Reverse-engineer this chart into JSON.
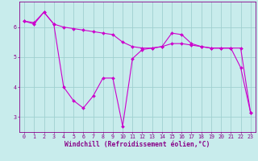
{
  "xlabel": "Windchill (Refroidissement éolien,°C)",
  "background_color": "#c8ecec",
  "grid_color": "#a0d0d0",
  "line_color": "#cc00cc",
  "xlim": [
    -0.5,
    23.5
  ],
  "ylim": [
    2.5,
    6.85
  ],
  "yticks": [
    3,
    4,
    5,
    6
  ],
  "xticks": [
    0,
    1,
    2,
    3,
    4,
    5,
    6,
    7,
    8,
    9,
    10,
    11,
    12,
    13,
    14,
    15,
    16,
    17,
    18,
    19,
    20,
    21,
    22,
    23
  ],
  "series1_x": [
    0,
    1,
    2,
    3,
    4,
    5,
    6,
    7,
    8,
    9,
    10,
    11,
    12,
    13,
    14,
    15,
    16,
    17,
    18,
    19,
    20,
    21,
    22,
    23
  ],
  "series1_y": [
    6.2,
    6.15,
    6.5,
    6.1,
    6.0,
    5.95,
    5.9,
    5.85,
    5.8,
    5.75,
    5.5,
    5.35,
    5.3,
    5.3,
    5.35,
    5.45,
    5.45,
    5.4,
    5.35,
    5.3,
    5.3,
    5.3,
    5.3,
    3.15
  ],
  "series2_x": [
    0,
    1,
    2,
    3,
    4,
    5,
    6,
    7,
    8,
    9,
    10,
    11,
    12,
    13,
    14,
    15,
    16,
    17,
    18,
    19,
    20,
    21,
    22,
    23
  ],
  "series2_y": [
    6.2,
    6.1,
    6.5,
    6.1,
    4.0,
    3.55,
    3.3,
    3.7,
    4.3,
    4.3,
    2.7,
    4.95,
    5.25,
    5.3,
    5.35,
    5.8,
    5.75,
    5.45,
    5.35,
    5.3,
    5.3,
    5.3,
    4.65,
    3.15
  ],
  "marker": "D",
  "markersize": 2.0,
  "linewidth": 0.8,
  "tick_fontsize": 4.8,
  "xlabel_fontsize": 5.8,
  "axis_color": "#880088"
}
